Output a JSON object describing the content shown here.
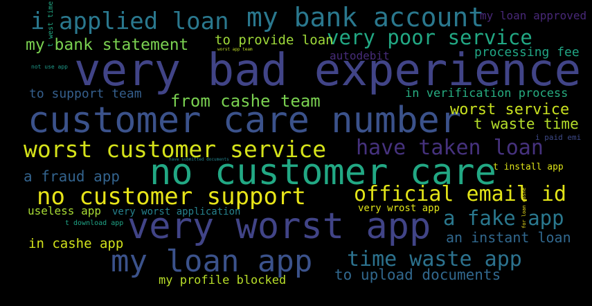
{
  "palette": {
    "background": "#000000",
    "dark_purple": "#482475",
    "indigo": "#414487",
    "blue": "#355f8d",
    "teal_blue": "#2a788e",
    "teal": "#21918c",
    "green_teal": "#22a884",
    "green": "#44bf70",
    "lime": "#7ad151",
    "yellow_green": "#bddf26",
    "yellow": "#fde725"
  },
  "words": [
    {
      "text": "very bad experience",
      "color": "#414487"
    },
    {
      "text": "customer care number",
      "color": "#3b528b"
    },
    {
      "text": "no customer care",
      "color": "#22a884"
    },
    {
      "text": "very worst app",
      "color": "#414487"
    },
    {
      "text": "my loan app",
      "color": "#3b528b"
    },
    {
      "text": "my bank account",
      "color": "#2a788e"
    },
    {
      "text": "i applied loan",
      "color": "#2a788e"
    },
    {
      "text": "worst customer service",
      "color": "#d5e21a"
    },
    {
      "text": "no customer support",
      "color": "#e7e419"
    },
    {
      "text": "official email id",
      "color": "#e2e418"
    },
    {
      "text": "have taken loan",
      "color": "#46327e"
    },
    {
      "text": "time waste app",
      "color": "#2c728e"
    },
    {
      "text": "very poor service",
      "color": "#22a884"
    },
    {
      "text": "my bank statement",
      "color": "#7ad151"
    },
    {
      "text": "a fake app",
      "color": "#2a788e"
    },
    {
      "text": "from cashe team",
      "color": "#7ad151"
    },
    {
      "text": "worst service",
      "color": "#c8e020"
    },
    {
      "text": "t waste time",
      "color": "#b5de2b"
    },
    {
      "text": "to upload documents",
      "color": "#31688e"
    },
    {
      "text": "an instant loan",
      "color": "#31688e"
    },
    {
      "text": "a fraud app",
      "color": "#33638d"
    },
    {
      "text": "to provide loan",
      "color": "#9fda3a"
    },
    {
      "text": "in cashe app",
      "color": "#d2e21b"
    },
    {
      "text": "my profile blocked",
      "color": "#b8de29"
    },
    {
      "text": "to support team",
      "color": "#355f8d"
    },
    {
      "text": "processing fee",
      "color": "#21a685"
    },
    {
      "text": "in verification process",
      "color": "#27ad81"
    },
    {
      "text": "my loan approved",
      "color": "#482878"
    },
    {
      "text": "useless app",
      "color": "#a8db34"
    },
    {
      "text": "very worst application",
      "color": "#26828e"
    },
    {
      "text": "very wrost app",
      "color": "#dfe318"
    },
    {
      "text": "autodebit",
      "color": "#472c7a"
    },
    {
      "text": "t install app",
      "color": "#dde318"
    },
    {
      "text": "t download app",
      "color": "#20a486"
    },
    {
      "text": "i paid emi",
      "color": "#3e4a89"
    },
    {
      "text": "not use app",
      "color": "#1f9a8a"
    },
    {
      "text": "worst app team",
      "color": "#c0df25"
    },
    {
      "text": "have submitted documents",
      "color": "#25848e"
    },
    {
      "text": "t west time",
      "color": "#22a884"
    },
    {
      "text": "for loan cashe",
      "color": "#f1e51d"
    }
  ]
}
